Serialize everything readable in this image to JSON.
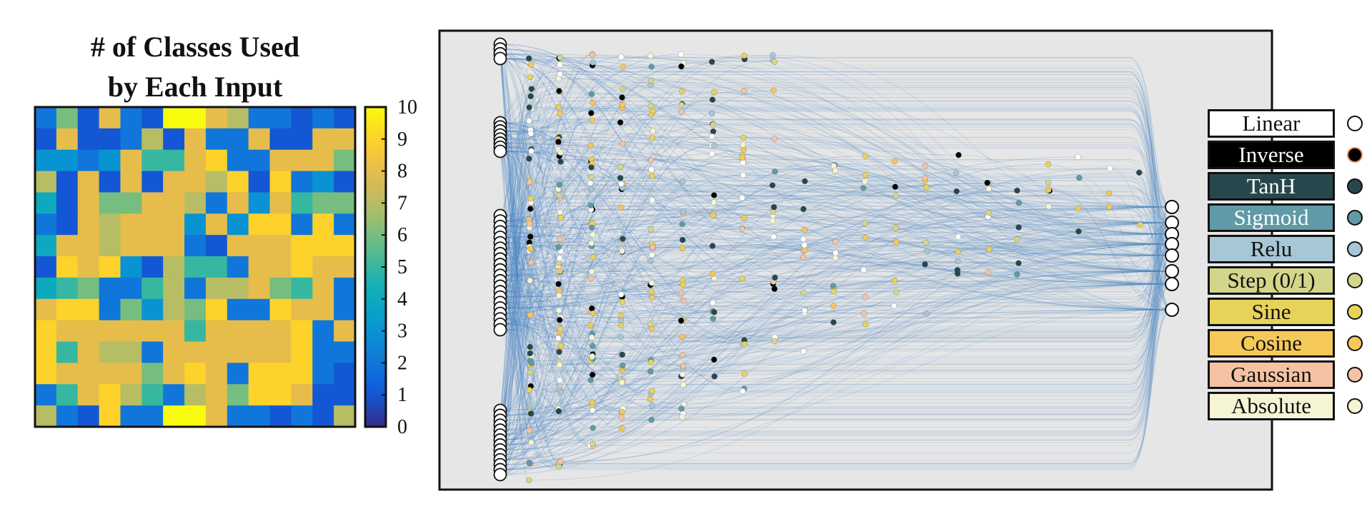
{
  "heatmap": {
    "title_line1": "# of Classes Used",
    "title_line2": "by Each Input",
    "colorbar_ticks": [
      "10",
      "9",
      "8",
      "7",
      "6",
      "5",
      "4",
      "3",
      "2",
      "1",
      "0"
    ],
    "grid": [
      [
        2,
        6,
        1,
        8,
        2,
        1,
        10,
        10,
        8,
        7,
        2,
        2,
        1,
        2,
        1
      ],
      [
        1,
        8,
        1,
        1,
        2,
        7,
        1,
        8,
        2,
        2,
        8,
        1,
        1,
        8,
        8
      ],
      [
        3,
        3,
        2,
        3,
        8,
        5,
        5,
        8,
        9,
        2,
        2,
        8,
        8,
        8,
        6
      ],
      [
        7,
        1,
        8,
        1,
        8,
        1,
        8,
        8,
        7,
        9,
        1,
        9,
        2,
        3,
        1
      ],
      [
        4,
        1,
        8,
        6,
        6,
        8,
        8,
        7,
        2,
        8,
        3,
        8,
        5,
        6,
        6
      ],
      [
        2,
        1,
        8,
        7,
        8,
        8,
        8,
        3,
        8,
        3,
        9,
        9,
        2,
        9,
        2
      ],
      [
        4,
        8,
        8,
        7,
        8,
        8,
        8,
        2,
        1,
        8,
        8,
        8,
        9,
        9,
        9
      ],
      [
        1,
        9,
        8,
        9,
        3,
        1,
        7,
        5,
        5,
        2,
        8,
        8,
        9,
        8,
        8
      ],
      [
        4,
        5,
        6,
        2,
        2,
        5,
        7,
        2,
        7,
        7,
        8,
        6,
        5,
        8,
        2
      ],
      [
        8,
        9,
        9,
        2,
        6,
        3,
        7,
        6,
        9,
        2,
        2,
        9,
        8,
        8,
        2
      ],
      [
        9,
        8,
        8,
        8,
        8,
        8,
        8,
        5,
        8,
        8,
        8,
        8,
        9,
        2,
        8
      ],
      [
        9,
        5,
        8,
        7,
        7,
        2,
        8,
        8,
        8,
        8,
        8,
        8,
        9,
        2,
        2
      ],
      [
        9,
        8,
        8,
        8,
        8,
        6,
        8,
        9,
        8,
        2,
        9,
        9,
        9,
        2,
        1
      ],
      [
        2,
        5,
        8,
        9,
        7,
        5,
        2,
        7,
        8,
        6,
        9,
        9,
        8,
        1,
        1
      ],
      [
        7,
        2,
        1,
        9,
        2,
        2,
        10,
        10,
        8,
        2,
        2,
        1,
        2,
        1,
        7
      ]
    ]
  },
  "legend": {
    "items": [
      {
        "label": "Linear",
        "bg": "#ffffff",
        "fg": "#111111",
        "dot": "#ffffff",
        "ring": "#111111"
      },
      {
        "label": "Inverse",
        "bg": "#000000",
        "fg": "#ffffff",
        "dot": "#000000",
        "ring": "#e8905a"
      },
      {
        "label": "TanH",
        "bg": "#27474d",
        "fg": "#ffffff",
        "dot": "#27474d",
        "ring": "#111111"
      },
      {
        "label": "Sigmoid",
        "bg": "#5f9aa6",
        "fg": "#ffffff",
        "dot": "#5f9aa6",
        "ring": "#111111"
      },
      {
        "label": "Relu",
        "bg": "#a7c7d6",
        "fg": "#111111",
        "dot": "#a7c7d6",
        "ring": "#111111"
      },
      {
        "label": "Step (0/1)",
        "bg": "#d3d68a",
        "fg": "#111111",
        "dot": "#d3d68a",
        "ring": "#111111"
      },
      {
        "label": "Sine",
        "bg": "#e8d35a",
        "fg": "#111111",
        "dot": "#e8d35a",
        "ring": "#111111"
      },
      {
        "label": "Cosine",
        "bg": "#f5c85a",
        "fg": "#111111",
        "dot": "#f5c85a",
        "ring": "#111111"
      },
      {
        "label": "Gaussian",
        "bg": "#f5c3a3",
        "fg": "#111111",
        "dot": "#f5c3a3",
        "ring": "#111111"
      },
      {
        "label": "Absolute",
        "bg": "#f5f5d6",
        "fg": "#111111",
        "dot": "#f5f5d6",
        "ring": "#111111"
      }
    ]
  },
  "network": {
    "background": "#e6e6e6",
    "edge_color": "#4a85c4",
    "node_palette": [
      "#000000",
      "#27474d",
      "#5f9aa6",
      "#a7c7d6",
      "#f5f5d6",
      "#ffffff",
      "#e8d35a",
      "#f5c85a",
      "#f5c3a3",
      "#d3d68a"
    ]
  }
}
